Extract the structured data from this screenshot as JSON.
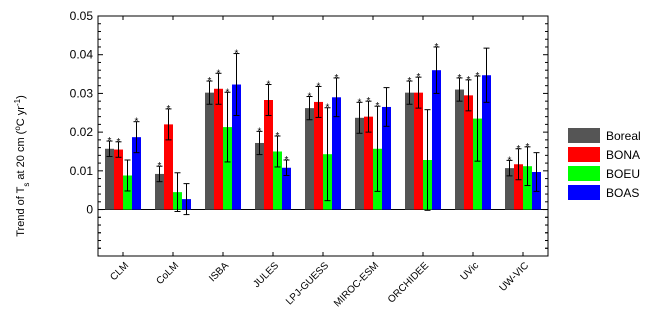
{
  "chart_data": {
    "type": "bar",
    "categories": [
      "CLM",
      "CoLM",
      "ISBA",
      "JULES",
      "LPJ-GUESS",
      "MIROC-ESM",
      "ORCHIDEE",
      "UVic",
      "UW-VIC"
    ],
    "series": [
      {
        "name": "Boreal",
        "color": "#555555",
        "values": [
          0.0157,
          0.0092,
          0.0302,
          0.0172,
          0.0262,
          0.0237,
          0.0302,
          0.031,
          0.0107
        ],
        "errors": [
          0.002,
          0.002,
          0.003,
          0.003,
          0.003,
          0.004,
          0.003,
          0.003,
          0.002
        ],
        "significant": [
          true,
          true,
          true,
          true,
          true,
          true,
          true,
          true,
          true
        ]
      },
      {
        "name": "BONA",
        "color": "#ff0000",
        "values": [
          0.0155,
          0.022,
          0.0312,
          0.0283,
          0.0278,
          0.024,
          0.0302,
          0.0295,
          0.0117
        ],
        "errors": [
          0.002,
          0.004,
          0.004,
          0.004,
          0.004,
          0.004,
          0.004,
          0.004,
          0.004
        ],
        "significant": [
          true,
          true,
          true,
          true,
          true,
          true,
          true,
          true,
          true
        ]
      },
      {
        "name": "BOEU",
        "color": "#00ff00",
        "values": [
          0.0088,
          0.0045,
          0.0213,
          0.015,
          0.0143,
          0.0157,
          0.0128,
          0.0235,
          0.0112
        ],
        "errors": [
          0.004,
          0.005,
          0.009,
          0.004,
          0.012,
          0.011,
          0.013,
          0.011,
          0.005
        ],
        "significant": [
          false,
          false,
          true,
          true,
          true,
          true,
          false,
          true,
          true
        ]
      },
      {
        "name": "BOAS",
        "color": "#0000ff",
        "values": [
          0.0187,
          0.0027,
          0.0323,
          0.0108,
          0.029,
          0.0265,
          0.036,
          0.0347,
          0.0097
        ],
        "errors": [
          0.004,
          0.004,
          0.008,
          0.002,
          0.005,
          0.005,
          0.006,
          0.007,
          0.005
        ],
        "significant": [
          true,
          false,
          true,
          true,
          true,
          false,
          true,
          false,
          false
        ]
      }
    ],
    "ylabel_main": "Trend of T",
    "ylabel_sub": "s",
    "ylabel_mid": " at 20 cm (",
    "ylabel_deg": "o",
    "ylabel_unit": "C yr",
    "ylabel_exp": "-1",
    "ylabel_close": ")",
    "ylim": [
      -0.012,
      0.05
    ],
    "yticks": [
      0,
      0.01,
      0.02,
      0.03,
      0.04,
      0.05
    ],
    "ytick_labels": [
      "0",
      "0.01",
      "0.02",
      "0.03",
      "0.04",
      "0.05"
    ],
    "significance_marker": "*",
    "legend_position": "right"
  }
}
